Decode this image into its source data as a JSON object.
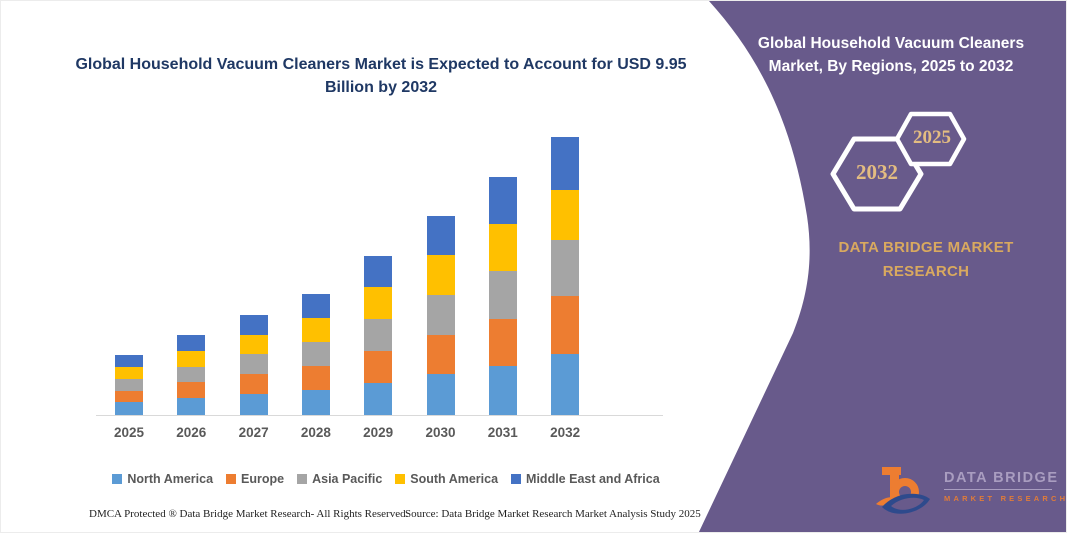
{
  "left": {
    "title": "Global Household Vacuum Cleaners Market is Expected to Account for USD 9.95 Billion by 2032",
    "footer_left": "DMCA Protected ® Data Bridge Market Research-  All Rights Reserved.",
    "footer_right": "Source: Data Bridge Market Research  Market Analysis Study 2025"
  },
  "chart_data": {
    "type": "bar",
    "stacked": true,
    "title": "Global Household Vacuum Cleaners Market is Expected to Account for USD 9.95 Billion by 2032",
    "unit": "USD Billion",
    "categories": [
      "2025",
      "2026",
      "2027",
      "2028",
      "2029",
      "2030",
      "2031",
      "2032"
    ],
    "totals": [
      2.14,
      2.85,
      3.59,
      4.32,
      5.7,
      7.13,
      8.53,
      9.95
    ],
    "series": [
      {
        "name": "North America",
        "color": "#5B9BD5",
        "values": [
          0.45,
          0.6,
          0.75,
          0.9,
          1.15,
          1.45,
          1.75,
          2.2
        ]
      },
      {
        "name": "Europe",
        "color": "#ED7D31",
        "values": [
          0.42,
          0.57,
          0.72,
          0.87,
          1.15,
          1.43,
          1.7,
          2.05
        ]
      },
      {
        "name": "Asia Pacific",
        "color": "#A5A5A5",
        "values": [
          0.42,
          0.56,
          0.71,
          0.86,
          1.14,
          1.42,
          1.7,
          2.0
        ]
      },
      {
        "name": "South America",
        "color": "#FFC000",
        "values": [
          0.42,
          0.56,
          0.7,
          0.85,
          1.13,
          1.41,
          1.68,
          1.8
        ]
      },
      {
        "name": "Middle East and Africa",
        "color": "#4472C4",
        "values": [
          0.43,
          0.56,
          0.71,
          0.84,
          1.13,
          1.42,
          1.7,
          1.9
        ]
      }
    ],
    "xlabel": "",
    "ylabel": "",
    "ylim": [
      0,
      10.5
    ],
    "grid": false,
    "legend_position": "bottom",
    "y_axis_visible": false
  },
  "right_panel": {
    "title": "Global Household Vacuum Cleaners Market, By Regions, 2025 to 2032",
    "hexagons": [
      {
        "label": "2032"
      },
      {
        "label": "2025"
      }
    ],
    "brand_text": "DATA BRIDGE MARKET RESEARCH",
    "colors": {
      "panel": "#685A8B",
      "gold": "#D9A95F",
      "hex_year_gold": "#E3BC81",
      "outline": "#FFFFFF"
    },
    "logo": {
      "brand": "DATA BRIDGE",
      "sub": "MARKET RESEARCH"
    }
  }
}
